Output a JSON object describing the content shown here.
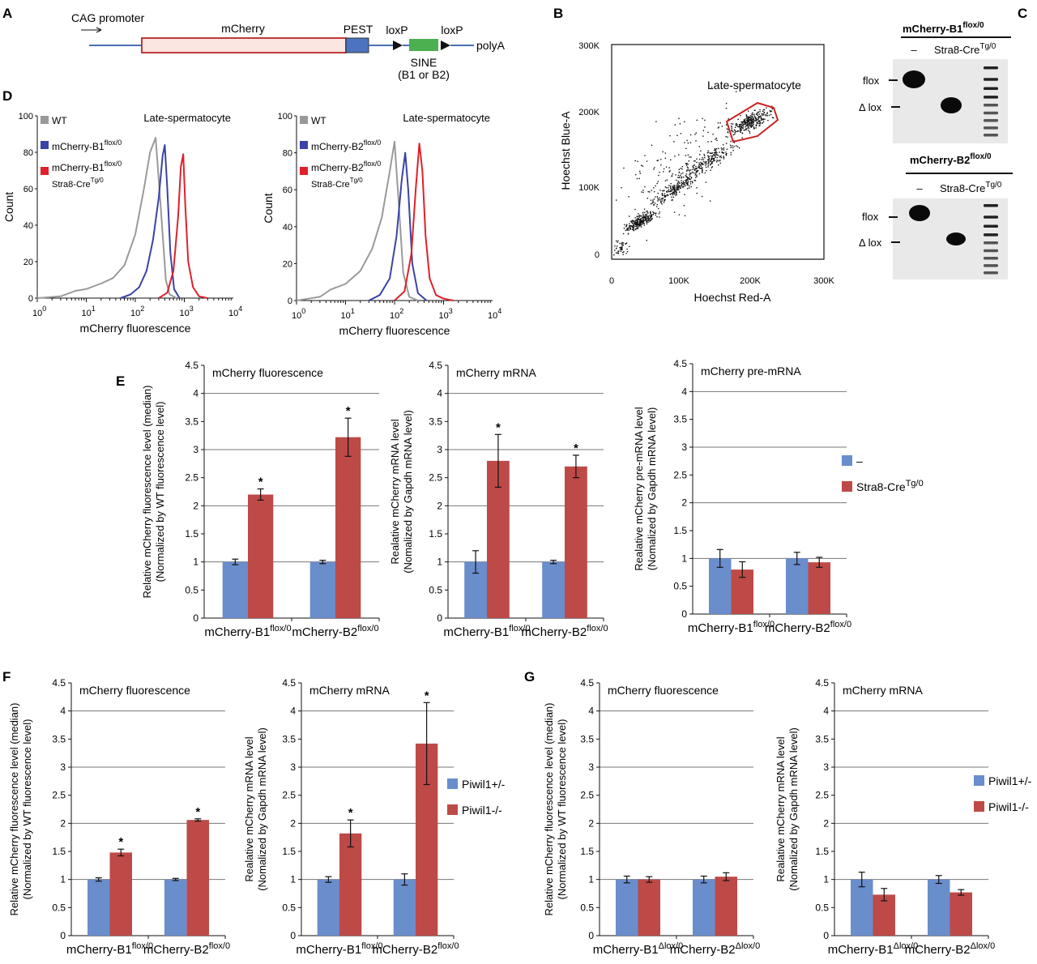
{
  "colors": {
    "blue": "#6a8dcc",
    "red": "#bd4a47",
    "grid": "#777777",
    "hist_gray": "#9a9a9a",
    "hist_blue": "#3a43a8",
    "hist_red": "#e0202a",
    "legend_gray": "#999999",
    "legend_blue": "#3a43a8",
    "legend_red": "#e0202a",
    "gate": "#cc2222",
    "construct_red": "#c0393b",
    "construct_body": "#fbe6e2",
    "pest": "#4b73c0",
    "sine": "#4caf50",
    "line_blue": "#4a6fb5"
  },
  "panel_letters": {
    "A": "A",
    "B": "B",
    "C": "C",
    "D": "D",
    "E": "E",
    "F": "F",
    "G": "G"
  },
  "construct": {
    "promoter": "CAG promoter",
    "gene": "mCherry",
    "pest": "PEST",
    "loxp1": "loxP",
    "loxp2": "loxP",
    "polya": "polyA",
    "sine": "SINE",
    "sine_sub": "(B1 or B2)"
  },
  "scatter": {
    "gate_label": "Late-spermatocyte",
    "xlabel": "Hoechst Red-A",
    "ylabel": "Hoechst Blue-A",
    "x_ticks": [
      "0",
      "100K",
      "200K",
      "300K"
    ],
    "y_ticks": [
      "0",
      "100K",
      "200K",
      "300K"
    ]
  },
  "gel": {
    "top_title_base": "mCherry-B1",
    "top_title_sup": "flox/0",
    "bottom_title_base": "mCherry-B2",
    "bottom_title_sup": "flox/0",
    "lane_minus": "–",
    "lane_cre_base": "Stra8-Cre",
    "lane_cre_sup": "Tg/0",
    "flox": "flox",
    "dlox": "Δ lox"
  },
  "hist": {
    "xlabel": "mCherry fluorescence",
    "ylabel": "Count",
    "title": "Late-spermatocyte",
    "y_ticks": [
      "0",
      "20",
      "40",
      "60",
      "80",
      "100"
    ],
    "x_ticks_base": [
      "10",
      "10",
      "10",
      "10",
      "10"
    ],
    "x_ticks_exp": [
      "0",
      "1",
      "2",
      "3",
      "4"
    ],
    "legend_wt": "WT",
    "left_legend_2_base": "mCherry-B1",
    "left_legend_2_sup": "flox/0",
    "left_legend_3_base": "mCherry-B1",
    "left_legend_3_sup": "flox/0",
    "right_legend_2_base": "mCherry-B2",
    "right_legend_2_sup": "flox/0",
    "right_legend_3_base": "mCherry-B2",
    "right_legend_3_sup": "flox/0",
    "cre_base": "Stra8-Cre",
    "cre_sup": "Tg/0"
  },
  "legends": {
    "e_minus": "–",
    "e_cre_base": "Stra8-Cre",
    "e_cre_sup": "Tg/0",
    "f_het": "Piwil1+/-",
    "f_ko": "Piwil1-/-",
    "g_het": "Piwil1+/-",
    "g_ko": "Piwil1-/-"
  },
  "y_ticks": [
    "0",
    "0.5",
    "1",
    "1.5",
    "2",
    "2.5",
    "3",
    "3.5",
    "4",
    "4.5"
  ],
  "star": "*",
  "ylabel_fluor_1": "Relative mCherry fluorescence level (median)",
  "ylabel_fluor_2": "(Normalized by WT fluorescence level)",
  "ylabel_mrna_1": "Realative mCherry mRNA level",
  "ylabel_mrna_2": "(Nomalized by Gapdh mRNA level)",
  "ylabel_pre_1": "Realative mCherry pre-mRNA level",
  "ylabel_pre_2": "(Nomalized by Gapdh mRNA level)",
  "chart_data": [
    {
      "id": "histD1",
      "type": "line",
      "panel": "D (left)",
      "title": "Late-spermatocyte",
      "xlabel": "mCherry fluorescence",
      "ylabel": "Count",
      "xscale": "log",
      "xlim": [
        1,
        10000
      ],
      "ylim": [
        0,
        100
      ],
      "series": [
        {
          "name": "WT",
          "color_key": "hist_gray",
          "x": [
            1,
            3,
            6,
            10,
            20,
            35,
            60,
            100,
            150,
            200,
            260,
            320,
            420,
            500,
            700
          ],
          "y": [
            0,
            1,
            4,
            5,
            8,
            11,
            18,
            35,
            60,
            80,
            88,
            55,
            10,
            2,
            0
          ]
        },
        {
          "name": "mCherry-B1 flox/0",
          "color_key": "hist_blue",
          "x": [
            50,
            80,
            120,
            170,
            230,
            300,
            360,
            400,
            450,
            520,
            620,
            800
          ],
          "y": [
            0,
            2,
            6,
            15,
            32,
            55,
            78,
            84,
            60,
            25,
            5,
            0
          ]
        },
        {
          "name": "mCherry-B1 flox/0 Stra8-Cre Tg/0",
          "color_key": "hist_red",
          "x": [
            300,
            450,
            600,
            750,
            850,
            950,
            1050,
            1200,
            1500,
            2000,
            3000
          ],
          "y": [
            0,
            3,
            15,
            45,
            72,
            79,
            50,
            20,
            6,
            1,
            0
          ]
        }
      ]
    },
    {
      "id": "histD2",
      "type": "line",
      "panel": "D (right)",
      "title": "Late-spermatocyte",
      "xlabel": "mCherry fluorescence",
      "ylabel": "Count",
      "xscale": "log",
      "xlim": [
        1,
        10000
      ],
      "ylim": [
        0,
        100
      ],
      "series": [
        {
          "name": "WT",
          "color_key": "hist_gray",
          "x": [
            1,
            3,
            5,
            10,
            20,
            35,
            55,
            80,
            100,
            120,
            150,
            200,
            300
          ],
          "y": [
            0,
            2,
            6,
            9,
            16,
            28,
            45,
            70,
            86,
            55,
            15,
            2,
            0
          ]
        },
        {
          "name": "mCherry-B2 flox/0",
          "color_key": "hist_blue",
          "x": [
            30,
            50,
            80,
            110,
            140,
            165,
            190,
            230,
            300,
            450
          ],
          "y": [
            0,
            3,
            12,
            35,
            65,
            80,
            60,
            20,
            4,
            0
          ]
        },
        {
          "name": "mCherry-B2 flox/0 Stra8-Cre Tg/0",
          "color_key": "hist_red",
          "x": [
            100,
            160,
            220,
            270,
            320,
            370,
            430,
            520,
            700,
            1000,
            1600
          ],
          "y": [
            0,
            5,
            25,
            60,
            85,
            70,
            35,
            12,
            3,
            1,
            0
          ]
        }
      ]
    },
    {
      "id": "chartE1",
      "type": "bar",
      "panel": "E",
      "title": "mCherry fluorescence",
      "categories": [
        "mCherry-B1",
        "mCherry-B2"
      ],
      "category_sup": [
        "flox/0",
        "flox/0"
      ],
      "ylabel": "Relative mCherry fluorescence level (median) (Normalized by WT fluorescence level)",
      "ylim": [
        0,
        4.5
      ],
      "legend": "none",
      "series": [
        {
          "name": "–",
          "values": [
            1.0,
            1.0
          ],
          "errors": [
            0.05,
            0.03
          ],
          "color_key": "blue"
        },
        {
          "name": "Stra8-Cre Tg/0",
          "values": [
            2.2,
            3.22
          ],
          "errors": [
            0.1,
            0.34
          ],
          "color_key": "red"
        }
      ],
      "significant": [
        false,
        false,
        true,
        true
      ]
    },
    {
      "id": "chartE2",
      "type": "bar",
      "panel": "E",
      "title": "mCherry mRNA",
      "categories": [
        "mCherry-B1",
        "mCherry-B2"
      ],
      "category_sup": [
        "flox/0",
        "flox/0"
      ],
      "ylabel": "Realative mCherry mRNA level (Nomalized by Gapdh mRNA level)",
      "ylim": [
        0,
        4.5
      ],
      "legend": "none",
      "series": [
        {
          "name": "–",
          "values": [
            1.0,
            1.0
          ],
          "errors": [
            0.2,
            0.03
          ],
          "color_key": "blue"
        },
        {
          "name": "Stra8-Cre Tg/0",
          "values": [
            2.8,
            2.7
          ],
          "errors": [
            0.47,
            0.2
          ],
          "color_key": "red"
        }
      ],
      "significant": [
        false,
        false,
        true,
        true
      ]
    },
    {
      "id": "chartE3",
      "type": "bar",
      "panel": "E",
      "title": "mCherry pre-mRNA",
      "categories": [
        "mCherry-B1",
        "mCherry-B2"
      ],
      "category_sup": [
        "flox/0",
        "flox/0"
      ],
      "ylabel": "Realative mCherry pre-mRNA level (Nomalized by Gapdh mRNA level)",
      "ylim": [
        0,
        4.5
      ],
      "legend": "right",
      "series": [
        {
          "name": "–",
          "values": [
            1.0,
            1.0
          ],
          "errors": [
            0.16,
            0.11
          ],
          "color_key": "blue"
        },
        {
          "name": "Stra8-Cre Tg/0",
          "values": [
            0.8,
            0.93
          ],
          "errors": [
            0.14,
            0.09
          ],
          "color_key": "red"
        }
      ],
      "significant": [
        false,
        false,
        false,
        false
      ]
    },
    {
      "id": "chartF1",
      "type": "bar",
      "panel": "F",
      "title": "mCherry fluorescence",
      "categories": [
        "mCherry-B1",
        "mCherry-B2"
      ],
      "category_sup": [
        "flox/0",
        "flox/0"
      ],
      "ylabel": "Relative mCherry fluorescence level (median) (Normalized by WT fluorescence level)",
      "ylim": [
        0,
        4.5
      ],
      "legend": "none",
      "series": [
        {
          "name": "Piwil1+/-",
          "values": [
            1.0,
            1.0
          ],
          "errors": [
            0.03,
            0.02
          ],
          "color_key": "blue"
        },
        {
          "name": "Piwil1-/-",
          "values": [
            1.48,
            2.06
          ],
          "errors": [
            0.06,
            0.02
          ],
          "color_key": "red"
        }
      ],
      "significant": [
        false,
        false,
        true,
        true
      ]
    },
    {
      "id": "chartF2",
      "type": "bar",
      "panel": "F",
      "title": "mCherry mRNA",
      "categories": [
        "mCherry-B1",
        "mCherry-B2"
      ],
      "category_sup": [
        "flox/0",
        "flox/0"
      ],
      "ylabel": "Realative mCherry mRNA level (Nomalized by Gapdh mRNA level)",
      "ylim": [
        0,
        4.5
      ],
      "legend": "right",
      "series": [
        {
          "name": "Piwil1+/-",
          "values": [
            1.0,
            1.0
          ],
          "errors": [
            0.05,
            0.1
          ],
          "color_key": "blue"
        },
        {
          "name": "Piwil1-/-",
          "values": [
            1.82,
            3.42
          ],
          "errors": [
            0.24,
            0.73
          ],
          "color_key": "red"
        }
      ],
      "significant": [
        false,
        false,
        true,
        true
      ]
    },
    {
      "id": "chartG1",
      "type": "bar",
      "panel": "G",
      "title": "mCherry fluorescence",
      "categories": [
        "mCherry-B1",
        "mCherry-B2"
      ],
      "category_sup": [
        "Δlox/0",
        "Δlox/0"
      ],
      "ylabel": "Relative mCherry fluorescence level (median) (Normalized by WT fluorescence level)",
      "ylim": [
        0,
        4.5
      ],
      "legend": "none",
      "series": [
        {
          "name": "Piwil1+/-",
          "values": [
            1.0,
            1.0
          ],
          "errors": [
            0.06,
            0.06
          ],
          "color_key": "blue"
        },
        {
          "name": "Piwil1-/-",
          "values": [
            1.0,
            1.05
          ],
          "errors": [
            0.05,
            0.07
          ],
          "color_key": "red"
        }
      ],
      "significant": [
        false,
        false,
        false,
        false
      ]
    },
    {
      "id": "chartG2",
      "type": "bar",
      "panel": "G",
      "title": "mCherry mRNA",
      "categories": [
        "mCherry-B1",
        "mCherry-B2"
      ],
      "category_sup": [
        "Δlox/0",
        "Δlox/0"
      ],
      "ylabel": "Realative mCherry mRNA level (Nomalized by Gapdh mRNA level)",
      "ylim": [
        0,
        4.5
      ],
      "legend": "right",
      "series": [
        {
          "name": "Piwil1+/-",
          "values": [
            1.0,
            1.0
          ],
          "errors": [
            0.13,
            0.07
          ],
          "color_key": "blue"
        },
        {
          "name": "Piwil1-/-",
          "values": [
            0.73,
            0.77
          ],
          "errors": [
            0.11,
            0.05
          ],
          "color_key": "red"
        }
      ],
      "significant": [
        false,
        false,
        false,
        false
      ]
    }
  ]
}
